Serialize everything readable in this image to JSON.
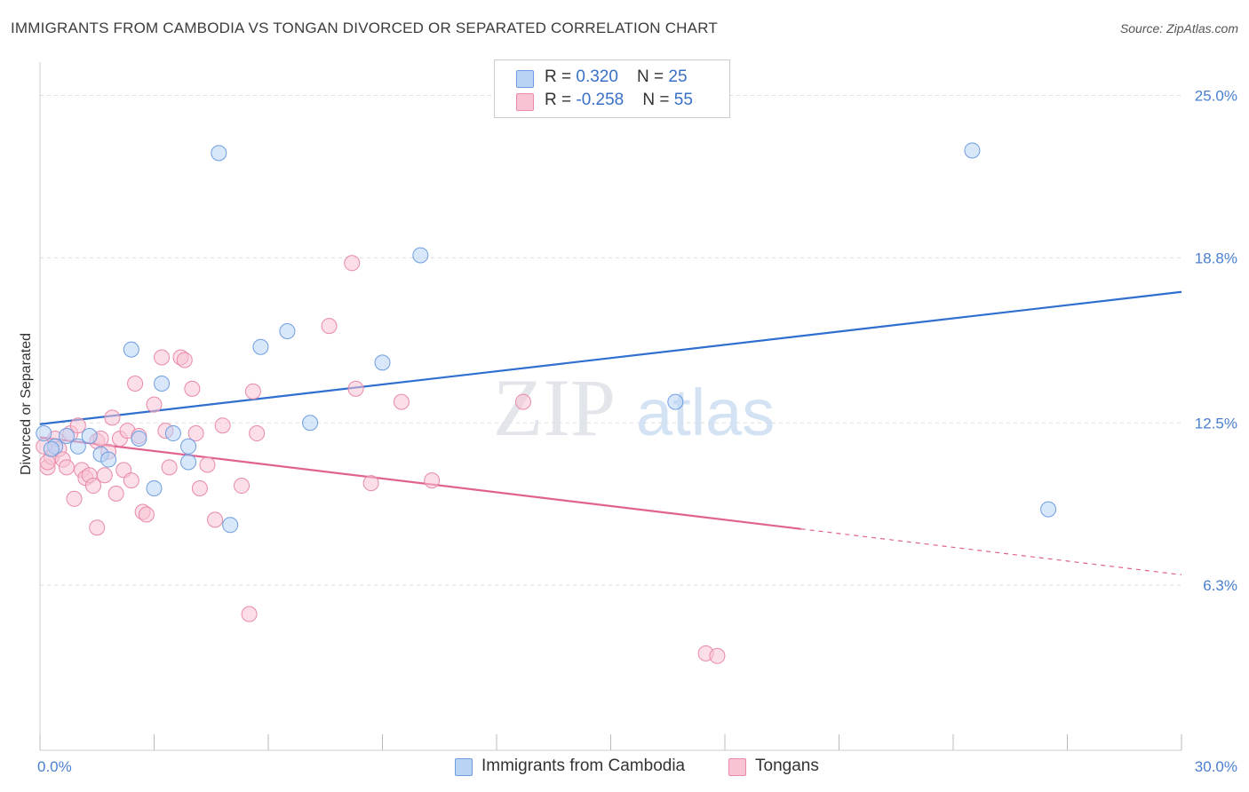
{
  "title": "IMMIGRANTS FROM CAMBODIA VS TONGAN DIVORCED OR SEPARATED CORRELATION CHART",
  "source": "Source: ZipAtlas.com",
  "watermark": {
    "zip": "ZIP",
    "atlas": "atlas"
  },
  "legend": {
    "cambodia": {
      "r_label": "R = ",
      "r_value": "0.320",
      "n_label": "N = ",
      "n_value": "25"
    },
    "tongans": {
      "r_label": "R = ",
      "r_value": "-0.258",
      "n_label": "N = ",
      "n_value": "55"
    }
  },
  "bottom_legend": {
    "cambodia": "Immigrants from Cambodia",
    "tongans": "Tongans"
  },
  "colors": {
    "cambodia_fill": "#b9d3f5",
    "cambodia_stroke": "#6d9ee0",
    "cambodia_line": "#2f6fcf",
    "tongans_fill": "#f8c3d3",
    "tongans_stroke": "#e98aa8",
    "tongans_line": "#e0628f",
    "grid": "#dddddd",
    "tick_text": "#4a7fcf"
  },
  "chart_data": {
    "type": "scatter",
    "title": "IMMIGRANTS FROM CAMBODIA VS TONGAN DIVORCED OR SEPARATED CORRELATION CHART",
    "xlabel": "",
    "ylabel": "Divorced or Separated",
    "xlim": [
      0,
      30
    ],
    "ylim": [
      0,
      26
    ],
    "x_tick_labels": [
      "0.0%",
      "30.0%"
    ],
    "y_tick_values": [
      6.3,
      12.5,
      18.8,
      25.0
    ],
    "y_tick_labels": [
      "6.3%",
      "12.5%",
      "18.8%",
      "25.0%"
    ],
    "grid": true,
    "legend_position": "top-center",
    "series": [
      {
        "name": "Immigrants from Cambodia",
        "points": [
          [
            0.1,
            12.1
          ],
          [
            0.4,
            11.6
          ],
          [
            0.7,
            12.0
          ],
          [
            1.0,
            11.6
          ],
          [
            1.3,
            12.0
          ],
          [
            1.6,
            11.3
          ],
          [
            1.8,
            11.1
          ],
          [
            2.4,
            15.3
          ],
          [
            2.6,
            11.9
          ],
          [
            3.0,
            10.0
          ],
          [
            3.2,
            14.0
          ],
          [
            3.5,
            12.1
          ],
          [
            3.9,
            11.0
          ],
          [
            3.9,
            11.6
          ],
          [
            4.7,
            22.8
          ],
          [
            5.0,
            8.6
          ],
          [
            5.8,
            15.4
          ],
          [
            6.5,
            16.0
          ],
          [
            7.1,
            12.5
          ],
          [
            9.0,
            14.8
          ],
          [
            10.0,
            18.9
          ],
          [
            16.7,
            13.3
          ],
          [
            24.5,
            22.9
          ],
          [
            26.5,
            9.2
          ],
          [
            0.3,
            11.5
          ]
        ],
        "trend": {
          "x0": 0,
          "y0": 12.45,
          "x1": 30,
          "y1": 17.5
        }
      },
      {
        "name": "Tongans",
        "points": [
          [
            0.1,
            11.6
          ],
          [
            0.2,
            10.8
          ],
          [
            0.3,
            11.2
          ],
          [
            0.4,
            11.9
          ],
          [
            0.5,
            11.5
          ],
          [
            0.6,
            11.1
          ],
          [
            0.7,
            10.8
          ],
          [
            0.8,
            12.1
          ],
          [
            0.9,
            9.6
          ],
          [
            1.0,
            12.4
          ],
          [
            1.1,
            10.7
          ],
          [
            1.2,
            10.4
          ],
          [
            1.3,
            10.5
          ],
          [
            1.4,
            10.1
          ],
          [
            1.5,
            11.8
          ],
          [
            1.6,
            11.9
          ],
          [
            1.7,
            10.5
          ],
          [
            1.8,
            11.4
          ],
          [
            1.9,
            12.7
          ],
          [
            2.0,
            9.8
          ],
          [
            2.1,
            11.9
          ],
          [
            2.2,
            10.7
          ],
          [
            2.3,
            12.2
          ],
          [
            2.4,
            10.3
          ],
          [
            2.5,
            14.0
          ],
          [
            2.6,
            12.0
          ],
          [
            2.7,
            9.1
          ],
          [
            2.8,
            9.0
          ],
          [
            3.0,
            13.2
          ],
          [
            3.2,
            15.0
          ],
          [
            3.3,
            12.2
          ],
          [
            3.4,
            10.8
          ],
          [
            3.7,
            15.0
          ],
          [
            3.8,
            14.9
          ],
          [
            4.0,
            13.8
          ],
          [
            4.1,
            12.1
          ],
          [
            4.2,
            10.0
          ],
          [
            4.4,
            10.9
          ],
          [
            4.6,
            8.8
          ],
          [
            4.8,
            12.4
          ],
          [
            5.3,
            10.1
          ],
          [
            5.5,
            5.2
          ],
          [
            5.6,
            13.7
          ],
          [
            5.7,
            12.1
          ],
          [
            7.6,
            16.2
          ],
          [
            8.2,
            18.6
          ],
          [
            8.3,
            13.8
          ],
          [
            8.7,
            10.2
          ],
          [
            9.5,
            13.3
          ],
          [
            10.3,
            10.3
          ],
          [
            12.7,
            13.3
          ],
          [
            17.5,
            3.7
          ],
          [
            17.8,
            3.6
          ],
          [
            0.2,
            11.0
          ],
          [
            1.5,
            8.5
          ]
        ],
        "trend": {
          "x0": 0,
          "y0": 11.95,
          "x1": 20,
          "y1": 8.45,
          "dash_to_x": 30,
          "dash_to_y": 6.7
        }
      }
    ]
  }
}
